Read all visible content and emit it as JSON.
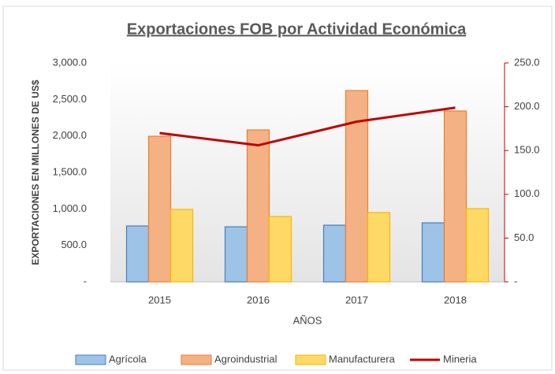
{
  "chart_data": {
    "type": "bar_line",
    "title": "Exportaciones FOB por Actividad Económica",
    "y_label": "EXPORTACIONES  EN MILLONES DE US$",
    "x_label": "AÑOS",
    "categories": [
      "2015",
      "2016",
      "2017",
      "2018"
    ],
    "series": [
      {
        "name": "Agrícola",
        "color": "#9dc3e6",
        "border": "#4a7ebb",
        "kind": "bar",
        "values": [
          766,
          755,
          777,
          809
        ]
      },
      {
        "name": "Agroindustrial",
        "color": "#f4b183",
        "border": "#ed7d31",
        "kind": "bar",
        "values": [
          1996,
          2083,
          2622,
          2342
        ]
      },
      {
        "name": "Manufacturera",
        "color": "#ffd966",
        "border": "#f5b800",
        "kind": "bar",
        "values": [
          993,
          896,
          950,
          1004
        ]
      },
      {
        "name": "Mineria",
        "color": "#c00000",
        "kind": "line",
        "axis": "y2",
        "values": [
          170,
          156,
          183,
          199
        ]
      }
    ],
    "ylim": [
      0,
      3000
    ],
    "yticks": [
      {
        "value": 0,
        "label": "-"
      },
      {
        "value": 500,
        "label": "500.0"
      },
      {
        "value": 1000,
        "label": "1,000.0"
      },
      {
        "value": 1500,
        "label": "1,500.0"
      },
      {
        "value": 2000,
        "label": "2,000.0"
      },
      {
        "value": 2500,
        "label": "2,500.0"
      },
      {
        "value": 3000,
        "label": "3,000.0"
      }
    ],
    "y2lim": [
      0,
      250
    ],
    "y2ticks": [
      {
        "value": 0,
        "label": "-"
      },
      {
        "value": 50,
        "label": "50.0"
      },
      {
        "value": 100,
        "label": "100.0"
      },
      {
        "value": 150,
        "label": "150.0"
      },
      {
        "value": 200,
        "label": "200.0"
      },
      {
        "value": 250,
        "label": "250.0"
      }
    ],
    "y2_color": "#c00000"
  }
}
